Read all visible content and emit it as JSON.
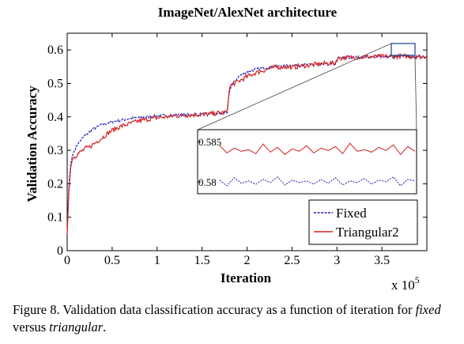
{
  "caption": {
    "prefix": "Figure 8. Validation data classification accuracy as a function of iteration for ",
    "term1": "fixed",
    "middle": " versus ",
    "term2": "triangular",
    "suffix": "."
  },
  "chart_data": {
    "type": "line",
    "title": "ImageNet/AlexNet architecture",
    "xlabel": "Iteration",
    "ylabel": "Validation Accuracy",
    "x_multiplier_label": "x 10",
    "x_multiplier_exponent": "5",
    "xlim": [
      0,
      400000
    ],
    "ylim": [
      0,
      0.65
    ],
    "xticks": [
      0,
      50000,
      100000,
      150000,
      200000,
      250000,
      300000,
      350000
    ],
    "xtick_labels": [
      "0",
      "0.5",
      "1",
      "1.5",
      "2",
      "2.5",
      "3",
      "3.5"
    ],
    "yticks": [
      0,
      0.1,
      0.2,
      0.3,
      0.4,
      0.5,
      0.6
    ],
    "ytick_labels": [
      "0",
      "0.1",
      "0.2",
      "0.3",
      "0.4",
      "0.5",
      "0.6"
    ],
    "legend_position": "bottom-right",
    "series": [
      {
        "name": "Fixed",
        "color": "#1f1fb4",
        "style": "dashed",
        "x": [
          0,
          2000,
          4000,
          6000,
          8000,
          10000,
          12000,
          15000,
          20000,
          25000,
          30000,
          35000,
          40000,
          50000,
          60000,
          70000,
          80000,
          90000,
          100000,
          110000,
          120000,
          130000,
          140000,
          150000,
          160000,
          170000,
          178000,
          180000,
          182000,
          190000,
          200000,
          210000,
          220000,
          230000,
          240000,
          250000,
          260000,
          270000,
          280000,
          290000,
          298000,
          300000,
          302000,
          310000,
          320000,
          330000,
          340000,
          350000,
          360000,
          370000,
          380000,
          390000,
          400000
        ],
        "y": [
          0.06,
          0.2,
          0.26,
          0.285,
          0.3,
          0.31,
          0.32,
          0.33,
          0.345,
          0.355,
          0.365,
          0.372,
          0.378,
          0.385,
          0.39,
          0.395,
          0.398,
          0.4,
          0.402,
          0.404,
          0.405,
          0.406,
          0.407,
          0.408,
          0.409,
          0.41,
          0.41,
          0.47,
          0.49,
          0.52,
          0.535,
          0.542,
          0.547,
          0.55,
          0.552,
          0.554,
          0.555,
          0.556,
          0.556,
          0.557,
          0.557,
          0.572,
          0.576,
          0.577,
          0.578,
          0.579,
          0.579,
          0.58,
          0.58,
          0.58,
          0.58,
          0.58,
          0.58
        ]
      },
      {
        "name": "Triangular2",
        "color": "#d42020",
        "style": "solid",
        "x": [
          0,
          2000,
          4000,
          6000,
          8000,
          10000,
          12000,
          15000,
          20000,
          25000,
          30000,
          35000,
          40000,
          50000,
          60000,
          70000,
          80000,
          90000,
          100000,
          110000,
          120000,
          130000,
          140000,
          150000,
          160000,
          170000,
          178000,
          180000,
          182000,
          190000,
          200000,
          210000,
          220000,
          230000,
          240000,
          250000,
          260000,
          270000,
          280000,
          290000,
          298000,
          300000,
          302000,
          310000,
          320000,
          330000,
          340000,
          350000,
          360000,
          370000,
          380000,
          390000,
          400000
        ],
        "y": [
          0.05,
          0.18,
          0.25,
          0.275,
          0.28,
          0.285,
          0.29,
          0.295,
          0.305,
          0.31,
          0.32,
          0.33,
          0.34,
          0.36,
          0.372,
          0.38,
          0.388,
          0.393,
          0.397,
          0.4,
          0.403,
          0.405,
          0.406,
          0.407,
          0.409,
          0.412,
          0.415,
          0.48,
          0.495,
          0.505,
          0.52,
          0.532,
          0.54,
          0.548,
          0.55,
          0.548,
          0.552,
          0.555,
          0.558,
          0.56,
          0.56,
          0.572,
          0.575,
          0.577,
          0.578,
          0.579,
          0.58,
          0.58,
          0.581,
          0.581,
          0.581,
          0.58,
          0.581
        ]
      }
    ],
    "inset": {
      "x_range": [
        365000,
        390000
      ],
      "yticks": [
        0.58,
        0.585
      ],
      "ytick_labels": [
        "0.58",
        "0.585"
      ],
      "fixed_y": [
        0.5802,
        0.5795,
        0.5805,
        0.5798,
        0.5801,
        0.5797,
        0.5803,
        0.5799,
        0.5806,
        0.5796,
        0.5802,
        0.5799,
        0.5801,
        0.5797,
        0.5803,
        0.5798,
        0.5805,
        0.5796,
        0.5801,
        0.5799,
        0.5804,
        0.5797,
        0.5802,
        0.58,
        0.5806,
        0.5795,
        0.5803,
        0.5801
      ],
      "tri_y": [
        0.5845,
        0.5836,
        0.5842,
        0.5838,
        0.584,
        0.5835,
        0.5847,
        0.5837,
        0.5843,
        0.5834,
        0.5841,
        0.5838,
        0.5845,
        0.5836,
        0.5842,
        0.5839,
        0.5844,
        0.5835,
        0.5848,
        0.5838,
        0.584,
        0.5837,
        0.5843,
        0.5839,
        0.5846,
        0.5834,
        0.5844,
        0.5838
      ]
    }
  }
}
